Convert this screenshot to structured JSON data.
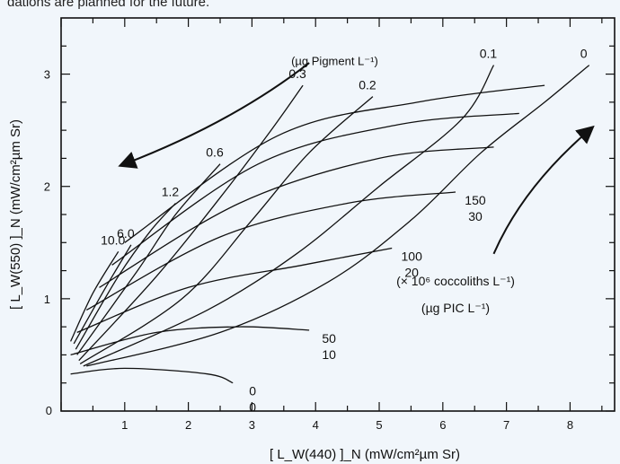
{
  "page": {
    "caption_fragment": "dations are planned for the future."
  },
  "chart_data": {
    "type": "line",
    "title": "",
    "xlabel": "[ L_W(440) ]_N  (mW/cm²µm Sr)",
    "ylabel": "[ L_W(550) ]_N  (mW/cm²µm Sr)",
    "xlim": [
      0,
      8.7
    ],
    "ylim": [
      0,
      3.5
    ],
    "x_ticks": [
      1,
      2,
      3,
      4,
      5,
      6,
      7,
      8
    ],
    "y_ticks": [
      1,
      2,
      3
    ],
    "origin_label": "0",
    "grid": false,
    "pigment_unit": "(µg Pigment L⁻¹)",
    "coccolith_unit": "(× 10⁶ coccoliths L⁻¹)",
    "pic_unit": "(µg PIC L⁻¹)",
    "series": [
      {
        "name": "0",
        "values": [
          [
            0.4,
            0.4
          ],
          [
            2.5,
            0.7
          ],
          [
            4.2,
            1.15
          ],
          [
            5.5,
            1.7
          ],
          [
            6.6,
            2.3
          ],
          [
            7.6,
            2.75
          ],
          [
            8.3,
            3.08
          ]
        ]
      },
      {
        "name": "0.1",
        "values": [
          [
            0.35,
            0.4
          ],
          [
            2.3,
            0.9
          ],
          [
            3.7,
            1.4
          ],
          [
            5.0,
            2.0
          ],
          [
            6.3,
            2.6
          ],
          [
            6.8,
            3.08
          ]
        ]
      },
      {
        "name": "0.2",
        "values": [
          [
            0.3,
            0.42
          ],
          [
            1.9,
            1.0
          ],
          [
            3.0,
            1.7
          ],
          [
            3.9,
            2.3
          ],
          [
            4.9,
            2.8
          ]
        ]
      },
      {
        "name": "0.3",
        "values": [
          [
            0.28,
            0.45
          ],
          [
            1.5,
            1.2
          ],
          [
            2.5,
            1.9
          ],
          [
            3.3,
            2.5
          ],
          [
            3.8,
            2.9
          ]
        ]
      },
      {
        "name": "0.6",
        "values": [
          [
            0.25,
            0.5
          ],
          [
            1.2,
            1.25
          ],
          [
            1.8,
            1.75
          ],
          [
            2.5,
            2.2
          ]
        ]
      },
      {
        "name": "1.2",
        "values": [
          [
            0.23,
            0.55
          ],
          [
            0.9,
            1.2
          ],
          [
            1.4,
            1.6
          ],
          [
            1.8,
            1.85
          ]
        ]
      },
      {
        "name": "6.0",
        "values": [
          [
            0.2,
            0.6
          ],
          [
            0.7,
            1.1
          ],
          [
            1.1,
            1.48
          ]
        ]
      },
      {
        "name": "10.0",
        "values": [
          [
            0.15,
            0.62
          ],
          [
            0.5,
            1.05
          ],
          [
            0.9,
            1.42
          ]
        ]
      }
    ],
    "pic_isolines": [
      {
        "coccoliths": "0",
        "pic": "0",
        "values": [
          [
            0.15,
            0.33
          ],
          [
            1.0,
            0.38
          ],
          [
            2.3,
            0.33
          ],
          [
            2.7,
            0.25
          ]
        ]
      },
      {
        "coccoliths": "50",
        "pic": "10",
        "values": [
          [
            0.15,
            0.5
          ],
          [
            1.5,
            0.7
          ],
          [
            2.8,
            0.75
          ],
          [
            3.9,
            0.72
          ]
        ]
      },
      {
        "coccoliths": "100",
        "pic": "20",
        "values": [
          [
            0.25,
            0.7
          ],
          [
            2.0,
            1.1
          ],
          [
            3.8,
            1.3
          ],
          [
            5.2,
            1.45
          ]
        ]
      },
      {
        "coccoliths": "150",
        "pic": "30",
        "values": [
          [
            0.4,
            0.9
          ],
          [
            2.5,
            1.55
          ],
          [
            4.5,
            1.85
          ],
          [
            6.2,
            1.95
          ]
        ]
      },
      {
        "coccoliths": "",
        "pic": "",
        "values": [
          [
            0.6,
            1.1
          ],
          [
            2.8,
            1.85
          ],
          [
            5.0,
            2.25
          ],
          [
            6.8,
            2.35
          ]
        ]
      },
      {
        "coccoliths": "",
        "pic": "",
        "values": [
          [
            0.8,
            1.3
          ],
          [
            3.1,
            2.2
          ],
          [
            5.3,
            2.55
          ],
          [
            7.2,
            2.65
          ]
        ]
      },
      {
        "coccoliths": "",
        "pic": "",
        "values": [
          [
            1.0,
            1.5
          ],
          [
            3.4,
            2.45
          ],
          [
            5.6,
            2.75
          ],
          [
            7.6,
            2.9
          ]
        ]
      }
    ],
    "arrows": [
      {
        "meaning": "increasing pigment",
        "from": [
          3.9,
          3.1
        ],
        "to": [
          1.0,
          2.2
        ]
      },
      {
        "meaning": "increasing coccoliths",
        "from": [
          6.8,
          1.4
        ],
        "to": [
          8.3,
          2.5
        ]
      }
    ],
    "colors": {
      "background": "#f1f6fb",
      "ink": "#111111"
    }
  }
}
